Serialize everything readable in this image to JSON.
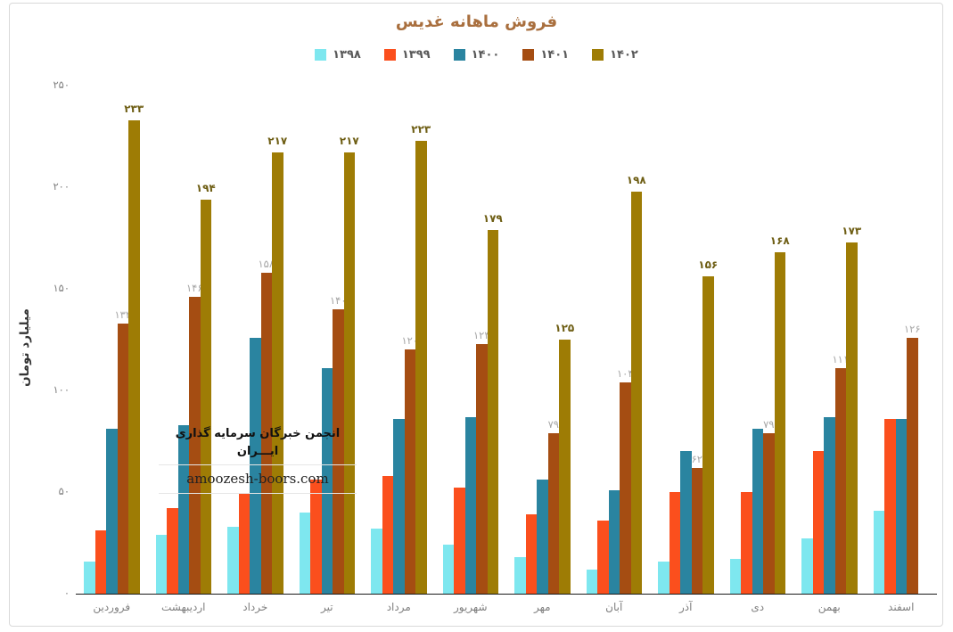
{
  "title": "فروش ماهانه غدیس",
  "watermark": {
    "line1": "انجمن خبرگان سرمایه گذاری ایـــران",
    "line2": "amoozesh-boors.com"
  },
  "y_axis": {
    "title": "میلیارد تومان",
    "ticks": [
      "۲۵۰",
      "۲۰۰",
      "۱۵۰",
      "۱۰۰",
      "۵۰",
      "۰"
    ]
  },
  "colors": {
    "title_text": "#a96f3e",
    "axis_line": "#1a1a1a",
    "tick_text": "#7f7f7f",
    "label_1401_text": "#a6a6a6",
    "label_1402_text": "#6e5e14"
  },
  "chart_data": {
    "type": "bar",
    "title": "فروش ماهانه غدیس",
    "ylabel": "میلیارد تومان",
    "ylim": [
      0,
      250
    ],
    "grid": false,
    "legend_position": "top",
    "categories": [
      "فروردین",
      "اردیبهشت",
      "خرداد",
      "تیر",
      "مرداد",
      "شهریور",
      "مهر",
      "آبان",
      "آذر",
      "دی",
      "بهمن",
      "اسفند"
    ],
    "series": [
      {
        "name": "۱۳۹۸",
        "year": "1398",
        "color": "#7ee7ef",
        "values": [
          16,
          29,
          33,
          40,
          32,
          24,
          18,
          12,
          16,
          17,
          27,
          41
        ],
        "labels": null
      },
      {
        "name": "۱۳۹۹",
        "year": "1399",
        "color": "#fb4f1d",
        "values": [
          31,
          42,
          49,
          56,
          58,
          52,
          39,
          36,
          50,
          50,
          70,
          86
        ],
        "labels": null
      },
      {
        "name": "۱۴۰۰",
        "year": "1400",
        "color": "#2a84a0",
        "values": [
          81,
          83,
          126,
          111,
          86,
          87,
          56,
          51,
          70,
          81,
          87,
          86
        ],
        "labels": null
      },
      {
        "name": "۱۴۰۱",
        "year": "1401",
        "color": "#a54d12",
        "values": [
          133,
          146,
          158,
          140,
          120,
          123,
          79,
          104,
          62,
          79,
          111,
          126
        ],
        "labels": [
          "۱۳۳",
          "۱۴۶",
          "۱۵۸",
          "۱۴۰",
          "۱۲۰",
          "۱۲۳",
          "۷۹",
          "۱۰۴",
          "۶۲",
          "۷۹",
          "۱۱۱",
          "۱۲۶"
        ]
      },
      {
        "name": "۱۴۰۲",
        "year": "1402",
        "color": "#9e7c05",
        "values": [
          233,
          194,
          217,
          217,
          223,
          179,
          125,
          198,
          156,
          168,
          173,
          null
        ],
        "labels": [
          "۲۳۳",
          "۱۹۴",
          "۲۱۷",
          "۲۱۷",
          "۲۲۳",
          "۱۷۹",
          "۱۲۵",
          "۱۹۸",
          "۱۵۶",
          "۱۶۸",
          "۱۷۳",
          null
        ]
      }
    ]
  }
}
